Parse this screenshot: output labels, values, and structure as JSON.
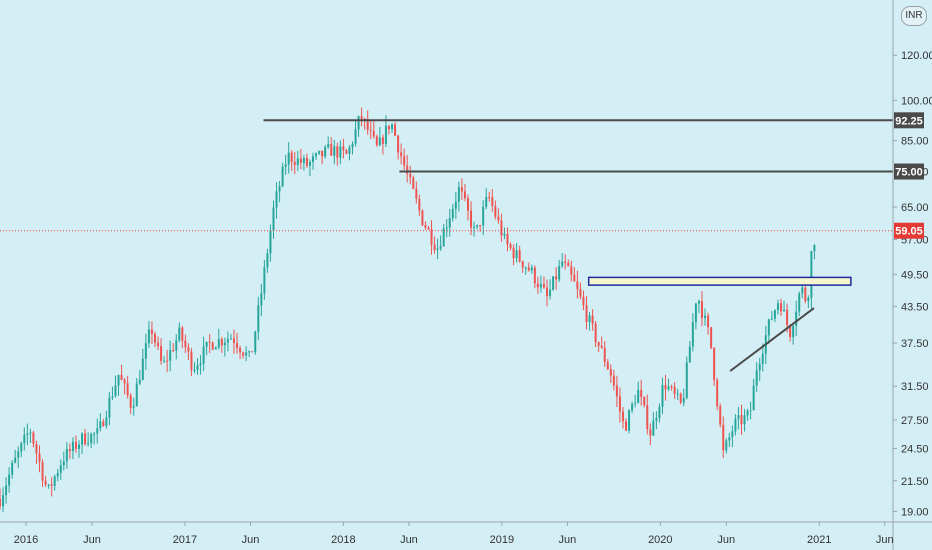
{
  "currency_label": "INR",
  "colors": {
    "background": "#d4eef5",
    "up": "#26a69a",
    "down": "#ef5350",
    "last_price": "#e53935",
    "level_line": "#4a4a4a",
    "zone_border": "#1e2a9a",
    "zone_fill": "#f5f5d0",
    "trendline": "#4a4a4a"
  },
  "chart_data": {
    "type": "candlestick",
    "price_scale": "log",
    "ylim": [
      18.2,
      150
    ],
    "y_ticks": [
      "19.00",
      "21.50",
      "24.50",
      "27.50",
      "31.50",
      "37.50",
      "43.50",
      "49.50",
      "57.00",
      "65.00",
      "75.00",
      "85.00",
      "100.00",
      "120.00"
    ],
    "x_ticks": [
      "2016",
      "Jun",
      "2017",
      "Jun",
      "2018",
      "Jun",
      "2019",
      "Jun",
      "2020",
      "Jun",
      "2021",
      "Jun"
    ],
    "x_range": [
      "2015-11-02",
      "2021-06-20"
    ],
    "levels": [
      {
        "label": "92.25",
        "value": 92.25,
        "from": "2017-07-01"
      },
      {
        "label": "75.00",
        "value": 75.0,
        "from": "2018-05-10"
      }
    ],
    "last_price": {
      "label": "59.05",
      "value": 59.05
    },
    "zone": {
      "from": "2019-07-20",
      "to": "2021-03-15",
      "low": 47.4,
      "high": 48.9
    },
    "trendline": {
      "from": [
        "2020-06-10",
        33.5
      ],
      "to": [
        "2020-12-20",
        43.2
      ]
    },
    "anchors": [
      [
        "2015-11-02",
        20.0
      ],
      [
        "2015-12-01",
        22.8
      ],
      [
        "2016-01-10",
        26.5
      ],
      [
        "2016-02-20",
        20.5
      ],
      [
        "2016-03-25",
        23.5
      ],
      [
        "2016-05-10",
        25.5
      ],
      [
        "2016-06-15",
        26.0
      ],
      [
        "2016-08-01",
        33.0
      ],
      [
        "2016-09-01",
        29.0
      ],
      [
        "2016-10-15",
        40.0
      ],
      [
        "2016-11-10",
        34.0
      ],
      [
        "2016-12-20",
        39.0
      ],
      [
        "2017-01-20",
        34.0
      ],
      [
        "2017-03-01",
        37.5
      ],
      [
        "2017-04-20",
        38.5
      ],
      [
        "2017-06-01",
        35.0
      ],
      [
        "2017-06-25",
        45.5
      ],
      [
        "2017-07-25",
        65.0
      ],
      [
        "2017-08-25",
        80.0
      ],
      [
        "2017-10-10",
        77.0
      ],
      [
        "2017-12-01",
        82.0
      ],
      [
        "2018-01-10",
        80.0
      ],
      [
        "2018-02-10",
        94.0
      ],
      [
        "2018-03-20",
        82.0
      ],
      [
        "2018-04-20",
        92.0
      ],
      [
        "2018-05-25",
        75.0
      ],
      [
        "2018-07-01",
        62.0
      ],
      [
        "2018-08-05",
        55.0
      ],
      [
        "2018-09-25",
        70.0
      ],
      [
        "2018-11-01",
        58.0
      ],
      [
        "2018-12-01",
        68.0
      ],
      [
        "2019-01-10",
        56.0
      ],
      [
        "2019-03-10",
        50.0
      ],
      [
        "2019-04-15",
        45.0
      ],
      [
        "2019-05-20",
        52.0
      ],
      [
        "2019-06-15",
        48.0
      ],
      [
        "2019-08-01",
        39.0
      ],
      [
        "2019-09-10",
        33.0
      ],
      [
        "2019-10-10",
        26.5
      ],
      [
        "2019-11-10",
        31.0
      ],
      [
        "2019-12-10",
        26.0
      ],
      [
        "2020-01-10",
        32.0
      ],
      [
        "2020-02-20",
        29.0
      ],
      [
        "2020-03-25",
        46.0
      ],
      [
        "2020-04-25",
        38.0
      ],
      [
        "2020-05-25",
        24.0
      ],
      [
        "2020-06-20",
        27.0
      ],
      [
        "2020-07-25",
        28.0
      ],
      [
        "2020-08-10",
        34.0
      ],
      [
        "2020-09-10",
        41.0
      ],
      [
        "2020-10-01",
        45.0
      ],
      [
        "2020-10-25",
        39.0
      ],
      [
        "2020-11-20",
        47.0
      ],
      [
        "2020-12-05",
        44.0
      ],
      [
        "2020-12-12",
        53.0
      ],
      [
        "2020-12-25",
        59.05
      ]
    ]
  }
}
